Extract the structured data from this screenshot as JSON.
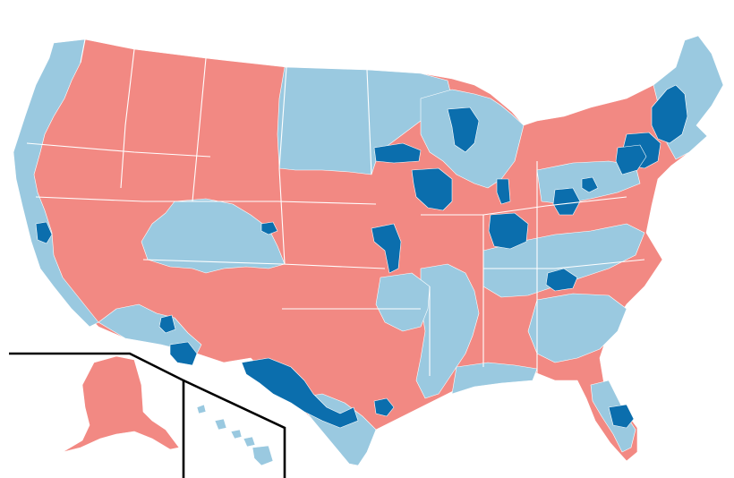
{
  "map": {
    "colors": {
      "red": "#f28983",
      "light_blue": "#9ac9e0",
      "dark_blue": "#0b6ead",
      "district_border": "#ffffff",
      "inset_border": "#000000",
      "background": "#ffffff"
    }
  }
}
